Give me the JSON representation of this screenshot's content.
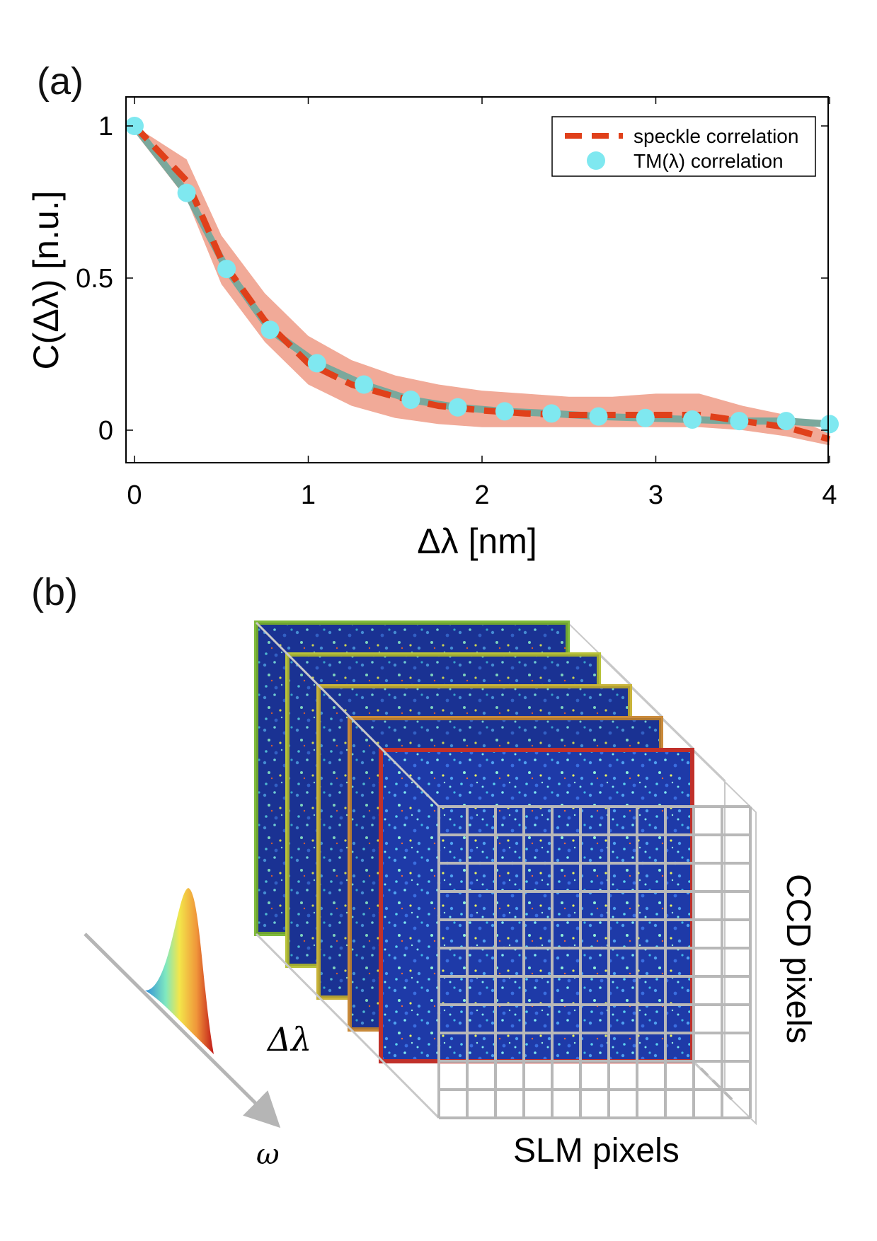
{
  "panel_a_label": "(a)",
  "panel_b_label": "(b)",
  "chart_data": {
    "type": "line",
    "xlabel": "Δλ [nm]",
    "ylabel": "C(Δλ) [n.u.]",
    "xlim": [
      0,
      4
    ],
    "ylim": [
      -0.1,
      1.1
    ],
    "xticks": [
      "0",
      "1",
      "2",
      "3",
      "4"
    ],
    "yticks": [
      "0",
      "0.5",
      "1"
    ],
    "grid": false,
    "legend_position": "top-right",
    "series": [
      {
        "name": "speckle correlation",
        "style": "dashed",
        "color": "#e0401a",
        "x": [
          0,
          0.3,
          0.5,
          0.75,
          1.0,
          1.25,
          1.5,
          1.75,
          2.0,
          2.25,
          2.5,
          2.75,
          3.0,
          3.25,
          3.5,
          3.75,
          4.0
        ],
        "values": [
          1.0,
          0.82,
          0.56,
          0.36,
          0.22,
          0.15,
          0.11,
          0.08,
          0.065,
          0.055,
          0.05,
          0.05,
          0.05,
          0.05,
          0.03,
          0.01,
          -0.03
        ],
        "band_upper": [
          1.0,
          0.89,
          0.64,
          0.45,
          0.31,
          0.23,
          0.18,
          0.15,
          0.13,
          0.12,
          0.11,
          0.11,
          0.12,
          0.12,
          0.08,
          0.05,
          -0.01
        ],
        "band_lower": [
          0.98,
          0.76,
          0.48,
          0.29,
          0.15,
          0.08,
          0.04,
          0.02,
          0.01,
          0.01,
          0.01,
          0.01,
          0.01,
          0.01,
          0.0,
          -0.02,
          -0.05
        ],
        "band_color": "#ee9b86"
      },
      {
        "name": "TM(λ) correlation",
        "style": "markers",
        "color": "#7fe8f0",
        "x": [
          0,
          0.3,
          0.53,
          0.78,
          1.05,
          1.32,
          1.59,
          1.86,
          2.13,
          2.4,
          2.67,
          2.94,
          3.21,
          3.48,
          3.75,
          4.0
        ],
        "values": [
          1.0,
          0.78,
          0.53,
          0.33,
          0.22,
          0.15,
          0.1,
          0.075,
          0.062,
          0.055,
          0.045,
          0.04,
          0.035,
          0.03,
          0.03,
          0.02
        ]
      }
    ]
  },
  "diagram": {
    "delta_lambda_label": "Δλ",
    "omega_label": "ω",
    "ccd_label": "CCD pixels",
    "slm_label": "SLM pixels",
    "frame_colors": [
      "#7fba3a",
      "#b7c23a",
      "#c9b43a",
      "#c98a3a",
      "#c0302a"
    ],
    "speckle_background": "#1e3aa8",
    "grid_color": "#b8b8b8"
  }
}
